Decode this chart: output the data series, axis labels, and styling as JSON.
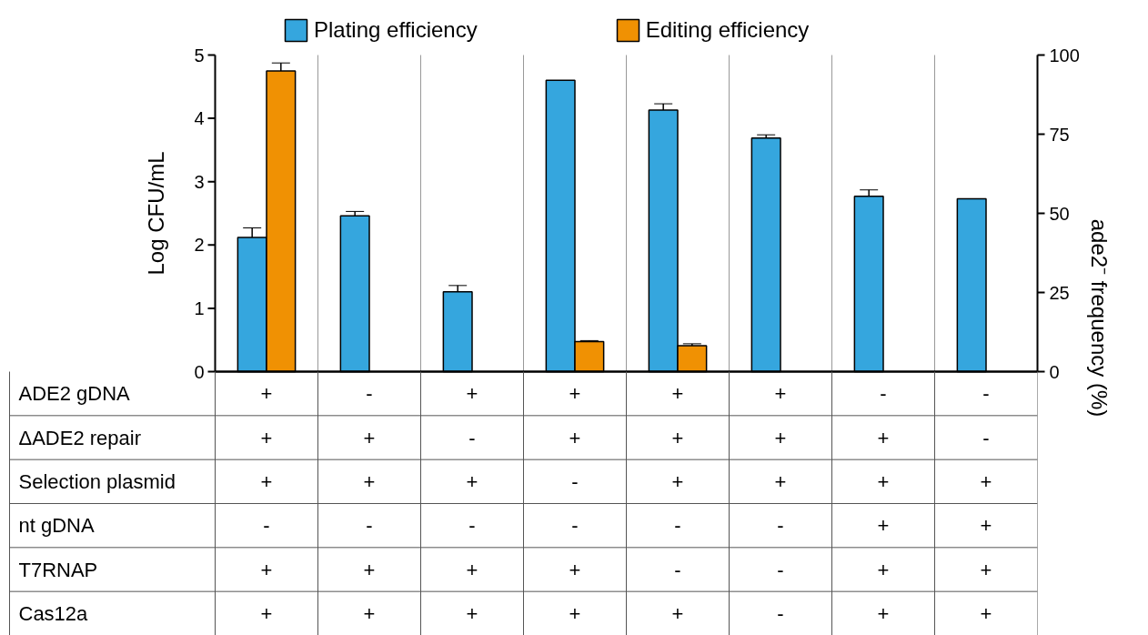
{
  "chart_data": {
    "type": "bar",
    "categories": [
      null,
      null,
      null,
      null,
      null,
      null,
      null,
      null
    ],
    "series": [
      {
        "name": "Plating efficiency",
        "color": "#35a6de",
        "values": [
          2.12,
          2.46,
          1.26,
          4.6,
          4.13,
          3.69,
          2.77,
          2.73
        ],
        "errors": [
          0.15,
          0.07,
          0.1,
          null,
          0.1,
          0.05,
          0.1,
          null
        ]
      },
      {
        "name": "Editing efficiency",
        "color": "#f09103",
        "axis": "y2",
        "values": [
          95,
          null,
          null,
          9.5,
          8.2,
          null,
          null,
          null
        ],
        "errors": [
          2.5,
          null,
          null,
          0.3,
          0.6,
          null,
          null,
          null
        ]
      }
    ],
    "ylabel": "Log CFU/mL",
    "y2label": "ade2⁻ frequency (%)",
    "ylim": [
      0,
      5
    ],
    "yticks": [
      0,
      1,
      2,
      3,
      4,
      5
    ],
    "y2lim": [
      0,
      100
    ],
    "y2ticks": [
      0,
      25,
      50,
      75,
      100
    ],
    "legend": "top",
    "annotations": [
      "ADE2 gDNA",
      "+",
      "-",
      "+",
      "+",
      "+",
      "+",
      "-",
      "-",
      "ΔADE2 repair",
      "+",
      "+",
      "-",
      "+",
      "+",
      "+",
      "+",
      "-",
      "Selection plasmid",
      "+",
      "+",
      "+",
      "-",
      "+",
      "+",
      "+",
      "+",
      "nt gDNA",
      "-",
      "-",
      "-",
      "-",
      "-",
      "-",
      "+",
      "+",
      "T7RNAP",
      "+",
      "+",
      "+",
      "+",
      "-",
      "-",
      "+",
      "+",
      "Cas12a",
      "+",
      "+",
      "+",
      "+",
      "+",
      "-",
      "+",
      "+"
    ]
  }
}
